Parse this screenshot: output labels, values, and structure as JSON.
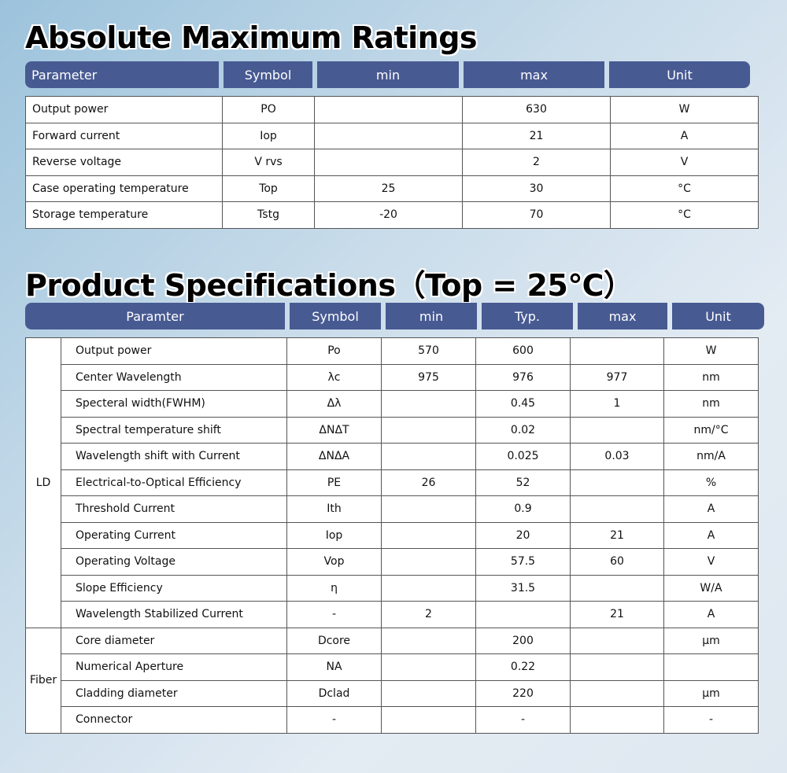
{
  "amr": {
    "title": "Absolute Maximum Ratings",
    "headers": [
      "Parameter",
      "Symbol",
      "min",
      "max",
      "Unit"
    ],
    "rows": [
      [
        "Output power",
        "PO",
        "",
        "630",
        "W"
      ],
      [
        "Forward current",
        "Iop",
        "",
        "21",
        "A"
      ],
      [
        "Reverse voltage",
        "V rvs",
        "",
        "2",
        "V"
      ],
      [
        "Case operating temperature",
        "Top",
        "25",
        "30",
        "°C"
      ],
      [
        "Storage temperature",
        "Tstg",
        "-20",
        "70",
        "°C"
      ]
    ]
  },
  "ps": {
    "title": "Product Specifications（Top = 25℃）",
    "headers": [
      "Paramter",
      "Symbol",
      "min",
      "Typ.",
      "max",
      "Unit"
    ],
    "groups": [
      {
        "name": "LD",
        "rows": [
          [
            "Output power",
            "Po",
            "570",
            "600",
            "",
            "W"
          ],
          [
            "Center Wavelength",
            "λc",
            "975",
            "976",
            "977",
            "nm"
          ],
          [
            "Specteral width(FWHM)",
            "Δλ",
            "",
            "0.45",
            "1",
            "nm"
          ],
          [
            "Spectral temperature shift",
            "ΔNΔT",
            "",
            "0.02",
            "",
            "nm/°C"
          ],
          [
            "Wavelength shift with Current",
            "ΔNΔA",
            "",
            "0.025",
            "0.03",
            "nm/A"
          ],
          [
            "Electrical-to-Optical Efficiency",
            "PE",
            "26",
            "52",
            "",
            "%"
          ],
          [
            "Threshold Current",
            "Ith",
            "",
            "0.9",
            "",
            "A"
          ],
          [
            "Operating Current",
            "Iop",
            "",
            "20",
            "21",
            "A"
          ],
          [
            "Operating Voltage",
            "Vop",
            "",
            "57.5",
            "60",
            "V"
          ],
          [
            "Slope Efficiency",
            "η",
            "",
            "31.5",
            "",
            "W/A"
          ],
          [
            "Wavelength Stabilized Current",
            "-",
            "2",
            "",
            "21",
            "A"
          ]
        ]
      },
      {
        "name": "Fiber",
        "rows": [
          [
            "Core diameter",
            "Dcore",
            "",
            "200",
            "",
            "μm"
          ],
          [
            "Numerical Aperture",
            "NA",
            "",
            "0.22",
            "",
            ""
          ],
          [
            "Cladding diameter",
            "Dclad",
            "",
            "220",
            "",
            "μm"
          ],
          [
            "Connector",
            "-",
            "",
            "-",
            "",
            "-"
          ]
        ]
      }
    ]
  }
}
